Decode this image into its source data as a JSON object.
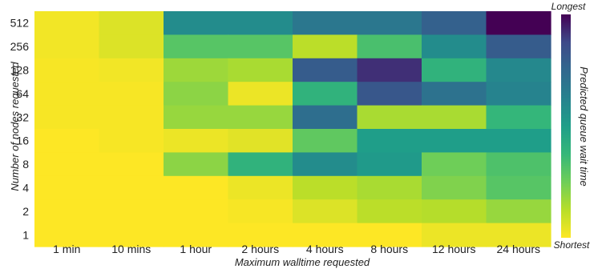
{
  "chart_data": {
    "type": "heatmap",
    "title": "",
    "xlabel": "Maximum walltime requested",
    "ylabel": "Number of nodes requested",
    "x_categories": [
      "1 min",
      "10 mins",
      "1 hour",
      "2 hours",
      "4 hours",
      "8 hours",
      "12 hours",
      "24 hours"
    ],
    "y_categories": [
      "512",
      "256",
      "128",
      "64",
      "32",
      "16",
      "8",
      "4",
      "2",
      "1"
    ],
    "values": [
      [
        0.02,
        0.06,
        0.58,
        0.58,
        0.68,
        0.68,
        0.78,
        1.0
      ],
      [
        0.02,
        0.06,
        0.3,
        0.3,
        0.12,
        0.33,
        0.58,
        0.8
      ],
      [
        0.01,
        0.02,
        0.17,
        0.15,
        0.8,
        0.92,
        0.4,
        0.6
      ],
      [
        0.01,
        0.01,
        0.2,
        0.03,
        0.4,
        0.82,
        0.7,
        0.62
      ],
      [
        0.01,
        0.01,
        0.18,
        0.18,
        0.72,
        0.15,
        0.15,
        0.38
      ],
      [
        0.0,
        0.01,
        0.03,
        0.05,
        0.28,
        0.5,
        0.5,
        0.5
      ],
      [
        0.0,
        0.0,
        0.2,
        0.4,
        0.58,
        0.52,
        0.25,
        0.32
      ],
      [
        0.0,
        0.0,
        0.0,
        0.03,
        0.12,
        0.15,
        0.22,
        0.3
      ],
      [
        0.0,
        0.0,
        0.0,
        0.01,
        0.06,
        0.12,
        0.13,
        0.18
      ],
      [
        0.0,
        0.0,
        0.0,
        0.0,
        0.0,
        0.0,
        0.03,
        0.03
      ]
    ],
    "colorscale": "viridis",
    "colorbar": {
      "label": "Predicted queue wait time",
      "max_label": "Longest",
      "min_label": "Shortest"
    },
    "grid": false
  }
}
